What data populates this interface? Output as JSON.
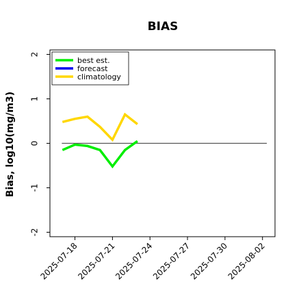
{
  "chart_data": {
    "type": "line",
    "title": "BIAS",
    "ylabel": "Bias, log10(mg/m3)",
    "xlabel": "",
    "ylim": [
      -2.1,
      2.1
    ],
    "yticks": [
      2,
      1,
      0,
      -1,
      -2
    ],
    "xlim": [
      "2025-07-16",
      "2025-08-03"
    ],
    "xticks": [
      {
        "date": "2025-07-18",
        "label": "2025-07-18",
        "color": "#000000"
      },
      {
        "date": "2025-07-21",
        "label": "2025-07-21",
        "color": "#000000"
      },
      {
        "date": "2025-07-24",
        "label": "2025-07-24",
        "color": "#228b22"
      },
      {
        "date": "2025-07-27",
        "label": "2025-07-27",
        "color": "#000000"
      },
      {
        "date": "2025-07-30",
        "label": "2025-07-30",
        "color": "#000000"
      },
      {
        "date": "2025-08-02",
        "label": "2025-08-02",
        "color": "#000000"
      }
    ],
    "reference_line": {
      "y": 0,
      "color": "#555555"
    },
    "grid": false,
    "legend_position": "top-left",
    "legend": [
      "best est.",
      "forecast",
      "climatology"
    ],
    "series": [
      {
        "name": "best est.",
        "color": "#00ee00",
        "x": [
          "2025-07-17",
          "2025-07-18",
          "2025-07-19",
          "2025-07-20",
          "2025-07-21",
          "2025-07-22",
          "2025-07-23"
        ],
        "values": [
          -0.15,
          -0.03,
          -0.06,
          -0.15,
          -0.52,
          -0.15,
          0.05
        ]
      },
      {
        "name": "forecast",
        "color": "#0000ee",
        "x": [],
        "values": []
      },
      {
        "name": "climatology",
        "color": "#ffd700",
        "x": [
          "2025-07-17",
          "2025-07-18",
          "2025-07-19",
          "2025-07-20",
          "2025-07-21",
          "2025-07-22",
          "2025-07-23"
        ],
        "values": [
          0.48,
          0.55,
          0.6,
          0.37,
          0.08,
          0.65,
          0.43
        ]
      }
    ]
  }
}
